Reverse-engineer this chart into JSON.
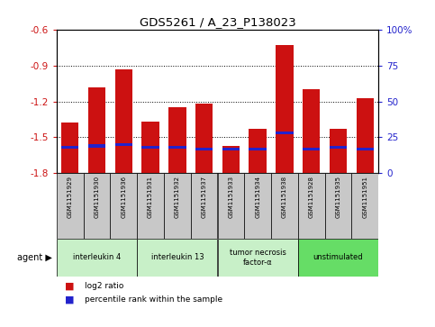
{
  "title": "GDS5261 / A_23_P138023",
  "samples": [
    "GSM1151929",
    "GSM1151930",
    "GSM1151936",
    "GSM1151931",
    "GSM1151932",
    "GSM1151937",
    "GSM1151933",
    "GSM1151934",
    "GSM1151938",
    "GSM1151928",
    "GSM1151935",
    "GSM1151951"
  ],
  "log2_ratio": [
    -1.38,
    -1.08,
    -0.93,
    -1.37,
    -1.25,
    -1.22,
    -1.57,
    -1.43,
    -0.73,
    -1.1,
    -1.43,
    -1.17
  ],
  "percentile_rank": [
    18,
    19,
    20,
    18,
    18,
    17,
    17,
    17,
    28,
    17,
    18,
    17
  ],
  "bar_bottom": -1.8,
  "blue_bar_height": 0.025,
  "ylim_left": [
    -1.8,
    -0.6
  ],
  "ylim_right": [
    0,
    100
  ],
  "yticks_left": [
    -1.8,
    -1.5,
    -1.2,
    -0.9,
    -0.6
  ],
  "yticks_right": [
    0,
    25,
    50,
    75,
    100
  ],
  "bar_color": "#cc1111",
  "blue_color": "#2222cc",
  "agent_groups": [
    {
      "label": "interleukin 4",
      "start": 0,
      "end": 3,
      "color": "#c8f0c8"
    },
    {
      "label": "interleukin 13",
      "start": 3,
      "end": 6,
      "color": "#c8f0c8"
    },
    {
      "label": "tumor necrosis\nfactor-α",
      "start": 6,
      "end": 9,
      "color": "#c8f0c8"
    },
    {
      "label": "unstimulated",
      "start": 9,
      "end": 12,
      "color": "#66dd66"
    }
  ],
  "bg_color": "#ffffff",
  "bar_bg_color": "#c8c8c8",
  "ylabel_left_color": "#cc1111",
  "ylabel_right_color": "#2222cc",
  "agent_label": "agent",
  "legend_items": [
    {
      "label": "log2 ratio",
      "color": "#cc1111"
    },
    {
      "label": "percentile rank within the sample",
      "color": "#2222cc"
    }
  ]
}
